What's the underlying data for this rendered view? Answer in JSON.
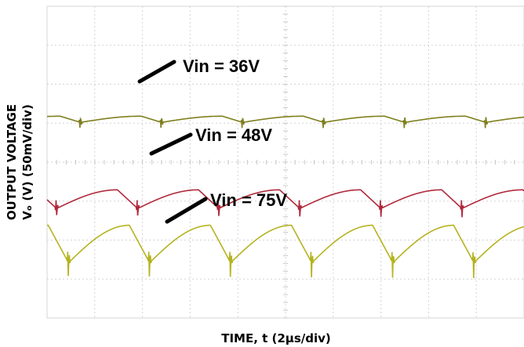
{
  "chart_data": {
    "type": "line",
    "title": "",
    "xlabel": "TIME, t (2µs/div)",
    "ylabel_line1": "OUTPUT VOLTAGE",
    "ylabel_line2": "Vₒ (V) (50mV/div)",
    "grid": true,
    "x_divisions": 10,
    "y_divisions": 8,
    "x_unit_per_div_us": 2,
    "y_unit_per_div_mV": 50,
    "switching_period_us": 3.4,
    "series": [
      {
        "name": "Vin = 36V",
        "color": "#7f7f1f",
        "offset_div": 2.9,
        "ripple_mV": 4,
        "spike_mV": 12,
        "phase_us": 1.4
      },
      {
        "name": "Vin = 48V",
        "color": "#b0283a",
        "offset_div": 4.95,
        "ripple_mV": 12,
        "spike_mV": 16,
        "phase_us": 0.4
      },
      {
        "name": "Vin = 75V",
        "color": "#b5b320",
        "offset_div": 6.1,
        "ripple_mV": 24,
        "spike_mV": 28,
        "phase_us": 0.9
      }
    ]
  },
  "annotations": [
    {
      "label": "Vin = 36V",
      "series": 0
    },
    {
      "label": "Vin = 48V",
      "series": 1
    },
    {
      "label": "Vin = 75V",
      "series": 2
    }
  ]
}
